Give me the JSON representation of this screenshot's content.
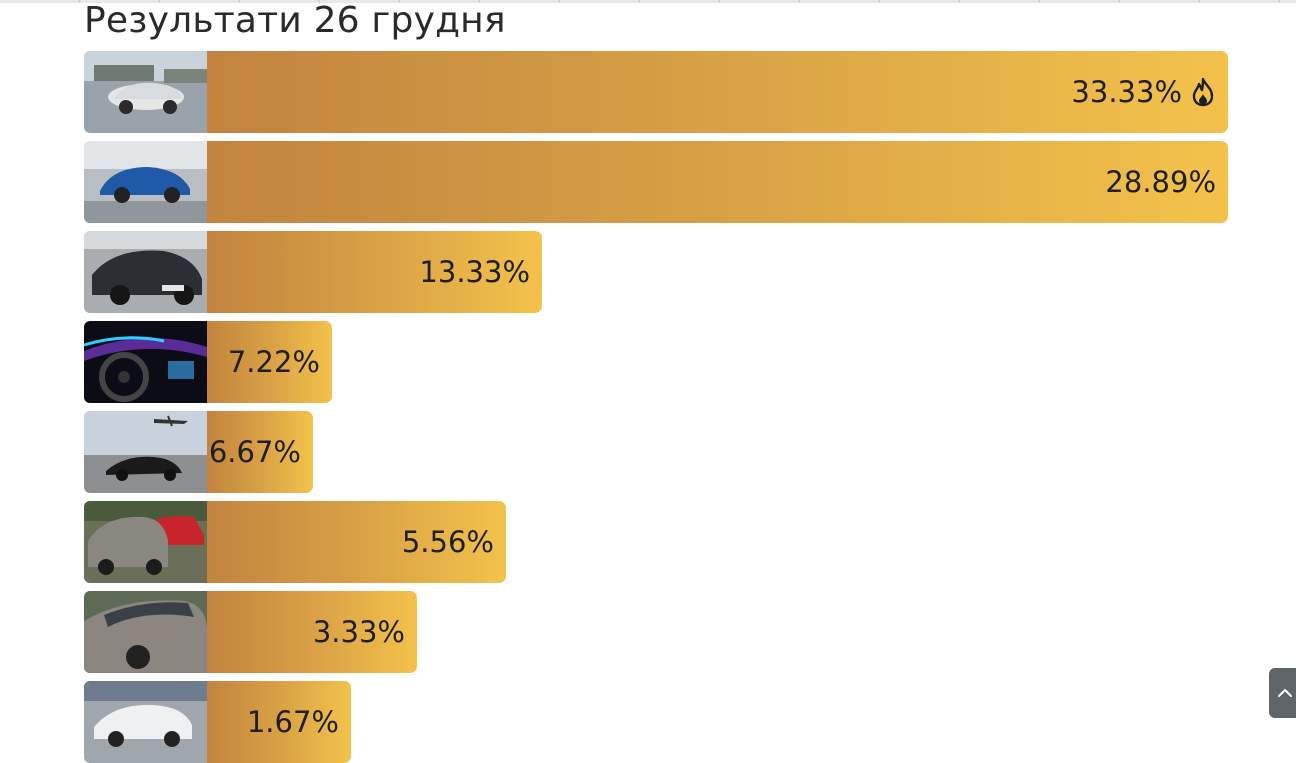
{
  "page": {
    "title": "Результати 26 грудня"
  },
  "results": [
    {
      "percent": "33.33%",
      "value": 33.33,
      "image": "silver-suv-photo",
      "leader": true
    },
    {
      "percent": "28.89%",
      "value": 28.89,
      "image": "blue-suv-photo",
      "leader": false
    },
    {
      "percent": "13.33%",
      "value": 13.33,
      "image": "dark-sedan-photo",
      "leader": false
    },
    {
      "percent": "7.22%",
      "value": 7.22,
      "image": "car-interior-photo",
      "leader": false
    },
    {
      "percent": "6.67%",
      "value": 6.67,
      "image": "black-hatchback-airplane-photo",
      "leader": false
    },
    {
      "percent": "5.56%",
      "value": 5.56,
      "image": "grey-opel-photo",
      "leader": false
    },
    {
      "percent": "3.33%",
      "value": 3.33,
      "image": "grey-hatchback-photo",
      "leader": false
    },
    {
      "percent": "1.67%",
      "value": 1.67,
      "image": "white-sedan-photo",
      "leader": false
    }
  ],
  "icons": {
    "leader": "flame-icon",
    "scroll": "scroll-to-top-icon"
  },
  "colors": {
    "bar_start": "#c2843f",
    "bar_end": "#f3c24b",
    "text": "#1f1f1f"
  }
}
